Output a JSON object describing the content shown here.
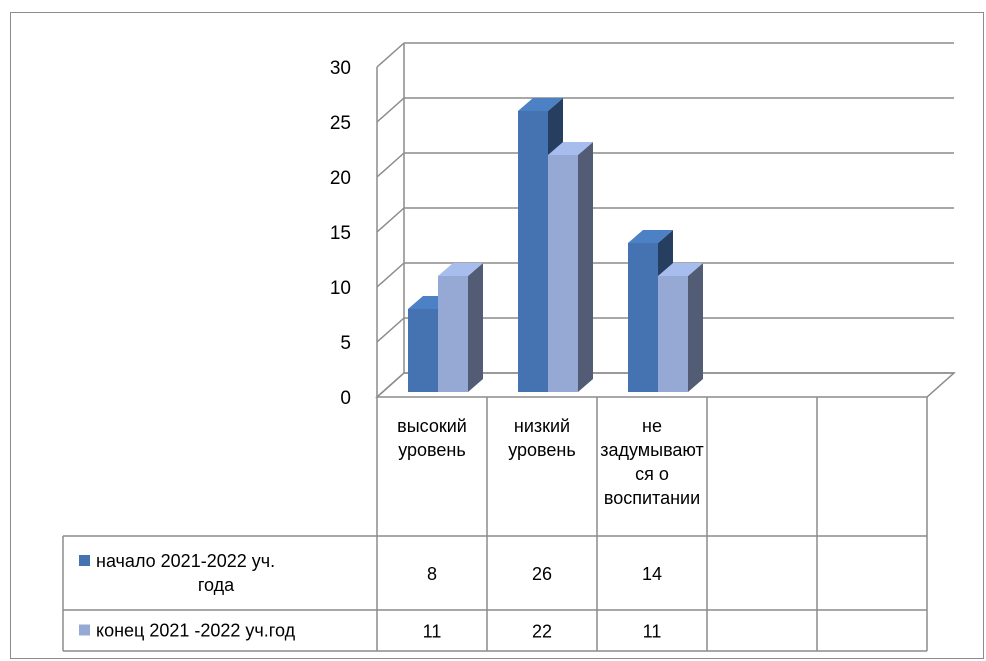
{
  "chart_data": {
    "type": "bar",
    "categories": [
      "высокий уровень",
      "низкий уровень",
      "не задумываются о воспитании",
      "",
      ""
    ],
    "category_label_lines": [
      [
        "высокий",
        "уровень"
      ],
      [
        "низкий",
        "уровень"
      ],
      [
        "не",
        "задумывают",
        "ся о",
        "воспитании"
      ],
      [],
      []
    ],
    "series": [
      {
        "name": "начало 2021-2022 уч. года",
        "name_lines": [
          "начало 2021-2022 уч.",
          "года"
        ],
        "values": [
          8,
          26,
          14,
          null,
          null
        ],
        "color": "#4573b1"
      },
      {
        "name": "конец 2021 -2022 уч.год",
        "name_lines": [
          "конец 2021 -2022 уч.год"
        ],
        "values": [
          11,
          22,
          11,
          null,
          null
        ],
        "color": "#95a9d4"
      }
    ],
    "ylim": [
      0,
      30
    ],
    "yticks": [
      0,
      5,
      10,
      15,
      20,
      25,
      30
    ],
    "grid": true,
    "legend": "data-table",
    "xlabel": "",
    "ylabel": "",
    "title": ""
  }
}
